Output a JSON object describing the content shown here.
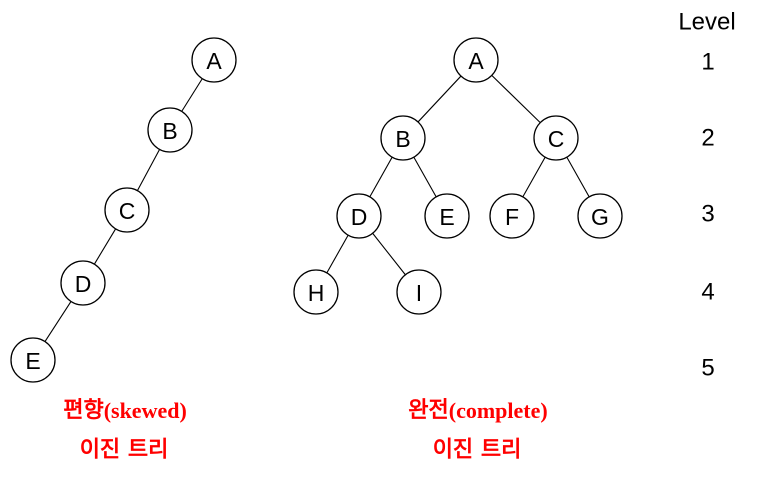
{
  "skewed_tree": {
    "nodes": [
      {
        "id": "A",
        "label": "A"
      },
      {
        "id": "B",
        "label": "B"
      },
      {
        "id": "C",
        "label": "C"
      },
      {
        "id": "D",
        "label": "D"
      },
      {
        "id": "E",
        "label": "E"
      }
    ],
    "edges": [
      [
        "A",
        "B"
      ],
      [
        "B",
        "C"
      ],
      [
        "C",
        "D"
      ],
      [
        "D",
        "E"
      ]
    ],
    "caption_line1_korean": "편향",
    "caption_line1_latin": "(skewed)",
    "caption_line2": "이진 트리"
  },
  "complete_tree": {
    "nodes": [
      {
        "id": "A",
        "label": "A"
      },
      {
        "id": "B",
        "label": "B"
      },
      {
        "id": "C",
        "label": "C"
      },
      {
        "id": "D",
        "label": "D"
      },
      {
        "id": "E",
        "label": "E"
      },
      {
        "id": "F",
        "label": "F"
      },
      {
        "id": "G",
        "label": "G"
      },
      {
        "id": "H",
        "label": "H"
      },
      {
        "id": "I",
        "label": "I"
      }
    ],
    "edges": [
      [
        "A",
        "B"
      ],
      [
        "A",
        "C"
      ],
      [
        "B",
        "D"
      ],
      [
        "B",
        "E"
      ],
      [
        "C",
        "F"
      ],
      [
        "C",
        "G"
      ],
      [
        "D",
        "H"
      ],
      [
        "D",
        "I"
      ]
    ],
    "caption_line1_korean": "완전",
    "caption_line1_latin": "(complete)",
    "caption_line2": "이진 트리"
  },
  "levels": {
    "header": "Level",
    "values": [
      "1",
      "2",
      "3",
      "4",
      "5"
    ]
  },
  "colors": {
    "caption": "#ff0000",
    "stroke": "#000000"
  }
}
